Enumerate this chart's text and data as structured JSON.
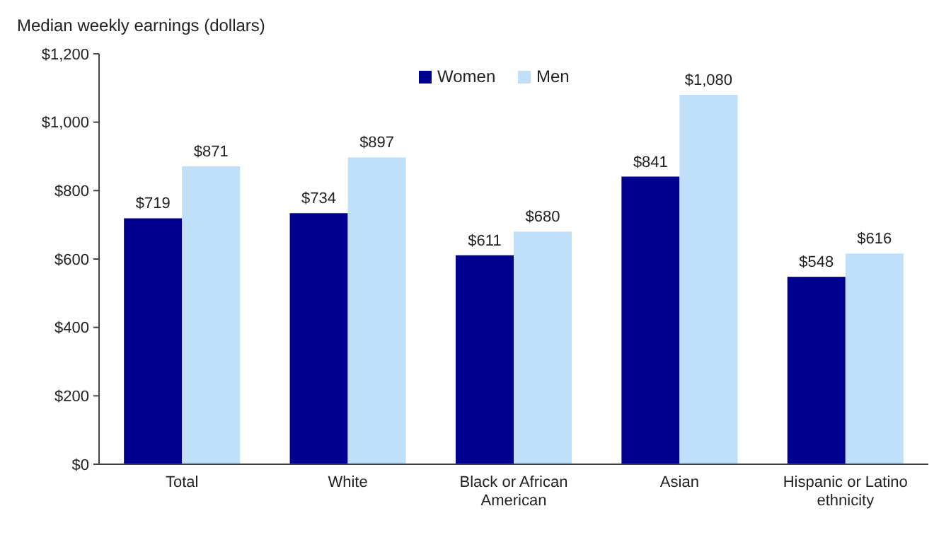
{
  "chart_data": {
    "type": "bar",
    "ylabel": "Median weekly earnings (dollars)",
    "categories": [
      "Total",
      "White",
      "Black or African American",
      "Asian",
      "Hispanic or Latino ethnicity"
    ],
    "series": [
      {
        "name": "Women",
        "color": "#000090",
        "values": [
          719,
          734,
          611,
          841,
          548
        ],
        "value_labels": [
          "$719",
          "$734",
          "$611",
          "$841",
          "$548"
        ]
      },
      {
        "name": "Men",
        "color": "#bfe0f8",
        "values": [
          871,
          897,
          680,
          1080,
          616
        ],
        "value_labels": [
          "$871",
          "$897",
          "$680",
          "$1,080",
          "$616"
        ]
      }
    ],
    "ylim": [
      0,
      1200
    ],
    "yticks": [
      {
        "value": 0,
        "label": "$0"
      },
      {
        "value": 200,
        "label": "$200"
      },
      {
        "value": 400,
        "label": "$400"
      },
      {
        "value": 600,
        "label": "$600"
      },
      {
        "value": 800,
        "label": "$800"
      },
      {
        "value": 1000,
        "label": "$1,000"
      },
      {
        "value": 1200,
        "label": "$1,200"
      }
    ],
    "grid": false,
    "legend": "top"
  }
}
